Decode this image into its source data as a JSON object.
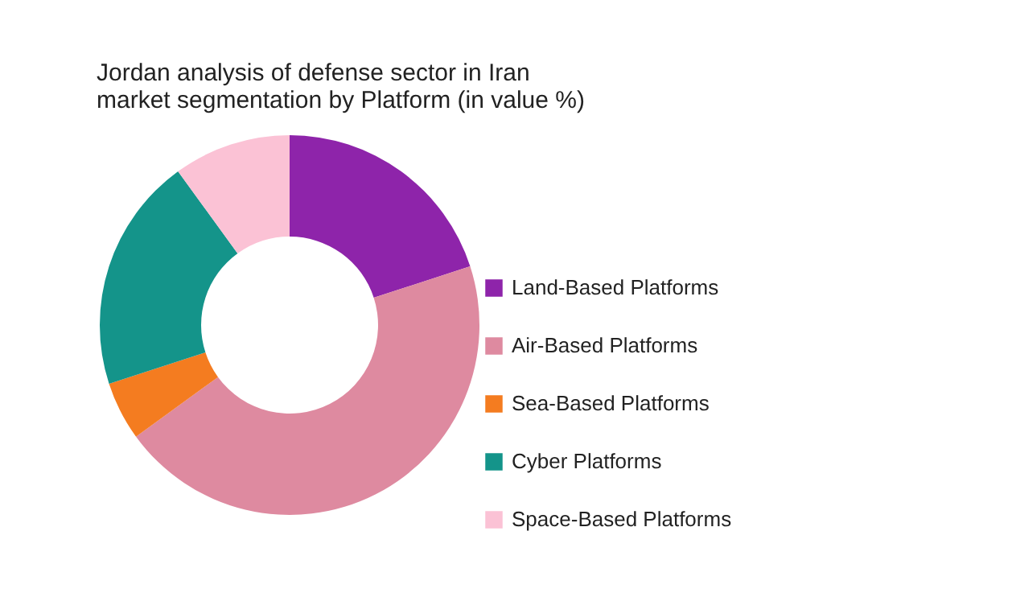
{
  "chart_data": {
    "type": "donut",
    "title": "Jordan analysis of defense sector in Iran\nmarket segmentation by Platform (in value %)",
    "categories": [
      "Land-Based Platforms",
      "Air-Based Platforms",
      "Sea-Based Platforms",
      "Cyber Platforms",
      "Space-Based Platforms"
    ],
    "values": [
      20,
      45,
      5,
      20,
      10
    ],
    "colors": [
      "#8e24aa",
      "#de8aa0",
      "#f47c20",
      "#14948a",
      "#fbc2d5"
    ],
    "legend": "right"
  }
}
